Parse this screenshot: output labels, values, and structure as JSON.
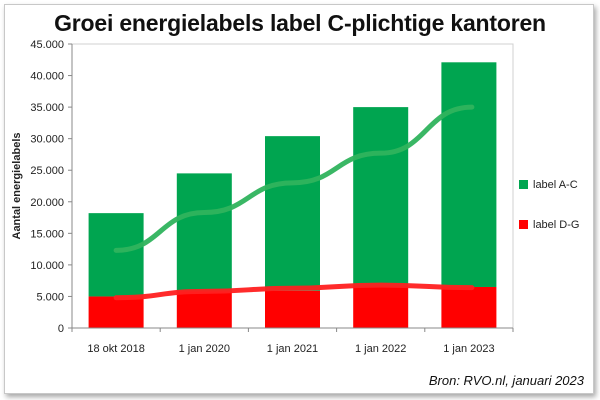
{
  "chart_data": {
    "type": "bar",
    "stacked": true,
    "title": "Groei energielabels label C-plichtige kantoren",
    "ylabel": "Aantal energielabels",
    "xlabel": "",
    "categories": [
      "18 okt 2018",
      "1 jan 2020",
      "1 jan 2021",
      "1 jan 2022",
      "1 jan 2023"
    ],
    "series": [
      {
        "name": "label D-G",
        "color": "#ff0000",
        "values": [
          5000,
          5800,
          5900,
          6600,
          6500
        ]
      },
      {
        "name": "label A-C",
        "color": "#00a550",
        "values": [
          13200,
          18700,
          24500,
          28400,
          35600
        ]
      }
    ],
    "trendlines": [
      {
        "series": "label A-C",
        "color": "#2fb35d",
        "values": [
          12300,
          18300,
          23000,
          27700,
          35000
        ]
      },
      {
        "series": "label D-G",
        "color": "#ff2020",
        "values": [
          4800,
          5800,
          6300,
          6800,
          6400
        ]
      }
    ],
    "ylim": [
      0,
      45000
    ],
    "yticks": [
      "0",
      "5.000",
      "10.000",
      "15.000",
      "20.000",
      "25.000",
      "30.000",
      "35.000",
      "40.000",
      "45.000"
    ],
    "legend_position": "right",
    "grid": false
  },
  "source_note": "Bron: RVO.nl, januari 2023"
}
